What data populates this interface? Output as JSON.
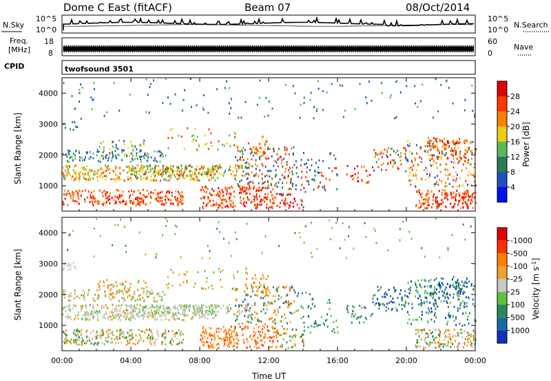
{
  "header": {
    "station": "Dome C East (fitACF)",
    "beam": "Beam 07",
    "date": "08/Oct/2014"
  },
  "nsky_panel": {
    "left_label": "N.Sky",
    "right_label": "N.Search",
    "top_tick": "10^5",
    "bottom_tick": "10^0"
  },
  "freq_panel": {
    "left_label_line1": "Freq.",
    "left_label_line2": "[MHz]",
    "left_ticks": [
      "18",
      "8"
    ],
    "right_label": "Nave",
    "right_ticks": [
      "60",
      "0"
    ]
  },
  "cpid_panel": {
    "label": "CPID",
    "program": "twofsound 3501"
  },
  "chart_data": [
    {
      "type": "heatmap",
      "name": "power",
      "ylabel": "Slant Range [km]",
      "y_ticks": [
        1000,
        2000,
        3000,
        4000
      ],
      "ylim": [
        180,
        4500
      ],
      "colorbar": {
        "label": "Power [dB]",
        "ticks": [
          "4",
          "8",
          "12",
          "16",
          "20",
          "24",
          "28"
        ],
        "colors": [
          "#0010e8",
          "#2050c0",
          "#2a7a55",
          "#5ab85a",
          "#e8d010",
          "#ff8000",
          "#ff3800",
          "#e00000"
        ]
      }
    },
    {
      "type": "heatmap",
      "name": "velocity",
      "ylabel": "Slant Range [km]",
      "y_ticks": [
        1000,
        2000,
        3000,
        4000
      ],
      "ylim": [
        180,
        4500
      ],
      "colorbar": {
        "label": "Velocity [m s^-1]",
        "ticks": [
          "1000",
          "500",
          "100",
          "25",
          "-25",
          "-100",
          "-500",
          "-1000"
        ],
        "colors": [
          "#1030c0",
          "#1a6aa0",
          "#2a8a55",
          "#60c040",
          "#c8c8c8",
          "#f0a030",
          "#ff8000",
          "#ff3000",
          "#e00000"
        ]
      }
    }
  ],
  "x_axis": {
    "label": "Time UT",
    "ticks": [
      "00:00",
      "04:00",
      "08:00",
      "12:00",
      "16:00",
      "20:00",
      "00:00"
    ]
  }
}
